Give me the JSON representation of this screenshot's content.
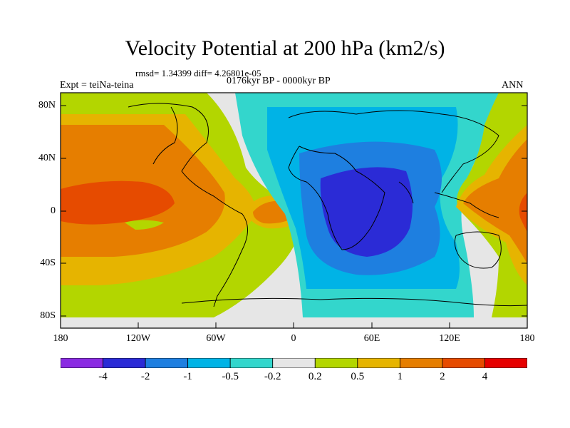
{
  "title": "Velocity Potential at 200 hPa (km2/s)",
  "stats": "rmsd= 1.34399 diff= 4.26801e-05",
  "experiment": "Expt = teiNa-teina",
  "period": "0176kyr BP - 0000kyr BP",
  "season": "ANN",
  "y_ticks": [
    "80N",
    "40N",
    "0",
    "40S",
    "80S"
  ],
  "x_ticks": [
    "180",
    "120W",
    "60W",
    "0",
    "60E",
    "120E",
    "180"
  ],
  "colorbar": {
    "labels": [
      "-4",
      "-2",
      "-1",
      "-0.5",
      "-0.2",
      "0.2",
      "0.5",
      "1",
      "2",
      "4"
    ],
    "colors": [
      "#8a2be2",
      "#2b2bd6",
      "#1e7fe0",
      "#00b3e6",
      "#33d6cc",
      "#e6e6e6",
      "#b3d600",
      "#e6b400",
      "#e67e00",
      "#e64b00",
      "#e60000"
    ]
  }
}
